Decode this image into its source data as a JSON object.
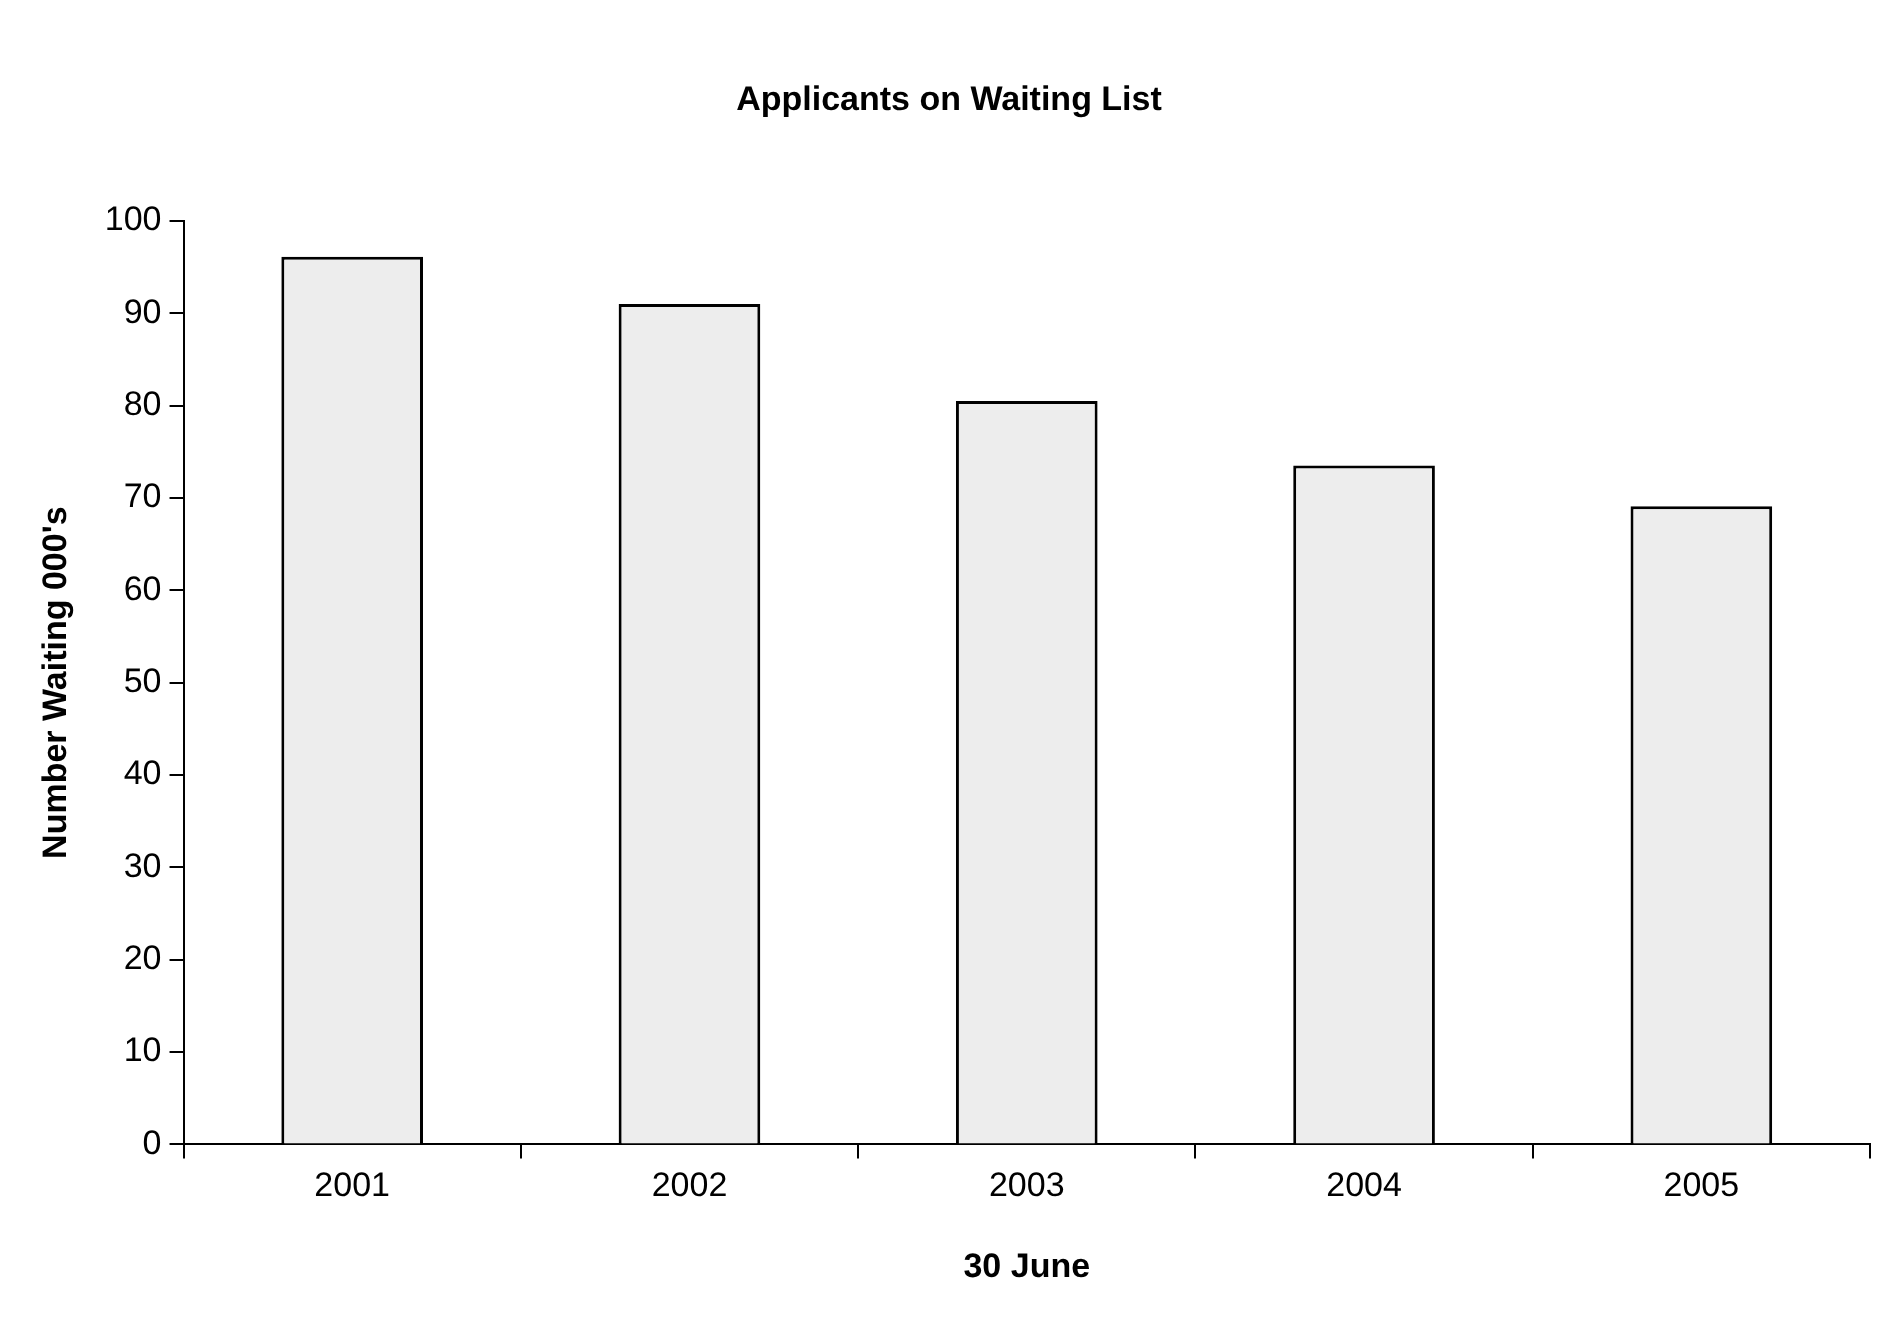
{
  "chart_data": {
    "type": "bar",
    "title": "Applicants on Waiting List",
    "xlabel": "30 June",
    "ylabel": "Number Waiting 000's",
    "categories": [
      "2001",
      "2002",
      "2003",
      "2004",
      "2005"
    ],
    "values": [
      96.1,
      91,
      80.5,
      73.5,
      69.1
    ],
    "color": "#ededed",
    "ylim": [
      0,
      100
    ],
    "yticks": [
      0,
      10,
      20,
      30,
      40,
      50,
      60,
      70,
      80,
      90,
      100
    ],
    "grid": false,
    "legend": false
  }
}
